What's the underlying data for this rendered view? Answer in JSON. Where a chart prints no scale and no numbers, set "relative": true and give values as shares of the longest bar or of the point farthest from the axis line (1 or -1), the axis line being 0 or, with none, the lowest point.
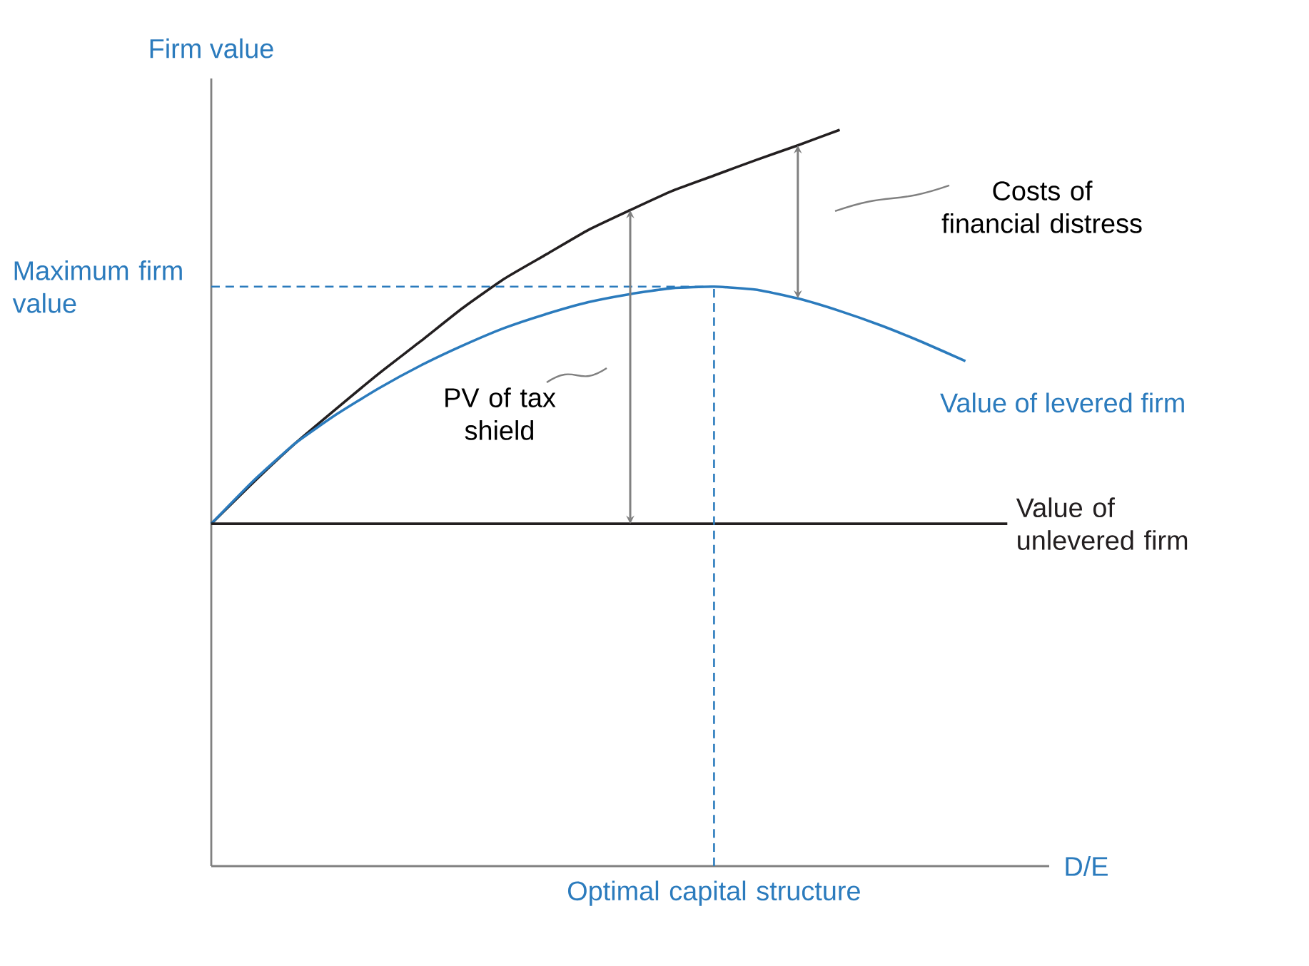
{
  "chart_data": {
    "type": "line",
    "relative": true,
    "ylabel": "Firm value",
    "xlabel": "D/E",
    "categories": [
      null,
      null,
      null,
      null,
      null,
      null,
      null,
      null,
      null,
      null,
      null,
      null,
      null,
      null,
      null,
      null,
      null,
      null,
      null,
      null,
      null
    ],
    "series": [
      {
        "color": "#231f20",
        "values": [
          0.465,
          0.521,
          0.574,
          0.622,
          0.669,
          0.713,
          0.758,
          0.798,
          0.831,
          0.864,
          0.891,
          0.917,
          0.938,
          0.959,
          0.979,
          1.0,
          null,
          null,
          null,
          null,
          null
        ]
      },
      {
        "name": "Value of levered firm",
        "color": "#2b7bbd",
        "values": [
          0.465,
          0.523,
          0.574,
          0.614,
          0.649,
          0.68,
          0.707,
          0.731,
          0.75,
          0.766,
          0.777,
          0.785,
          0.787,
          0.783,
          0.771,
          0.754,
          0.734,
          0.711,
          0.686,
          null,
          null
        ]
      },
      {
        "name": "Value of unlevered firm",
        "color": "#231f20",
        "values": [
          0.465,
          0.465,
          0.465,
          0.465,
          0.465,
          0.465,
          0.465,
          0.465,
          0.465,
          0.465,
          0.465,
          0.465,
          0.465,
          0.465,
          0.465,
          0.465,
          0.465,
          0.465,
          0.465,
          0.465,
          null
        ]
      }
    ],
    "ref_lines": [
      {
        "axis": "y",
        "value": 0.787,
        "label": "Maximum firm value",
        "color": "#2b7bbd",
        "line_style": "dashed"
      }
    ],
    "annotations": [
      "PV of tax shield",
      "Costs of financial distress",
      "Optimal capital structure"
    ]
  }
}
